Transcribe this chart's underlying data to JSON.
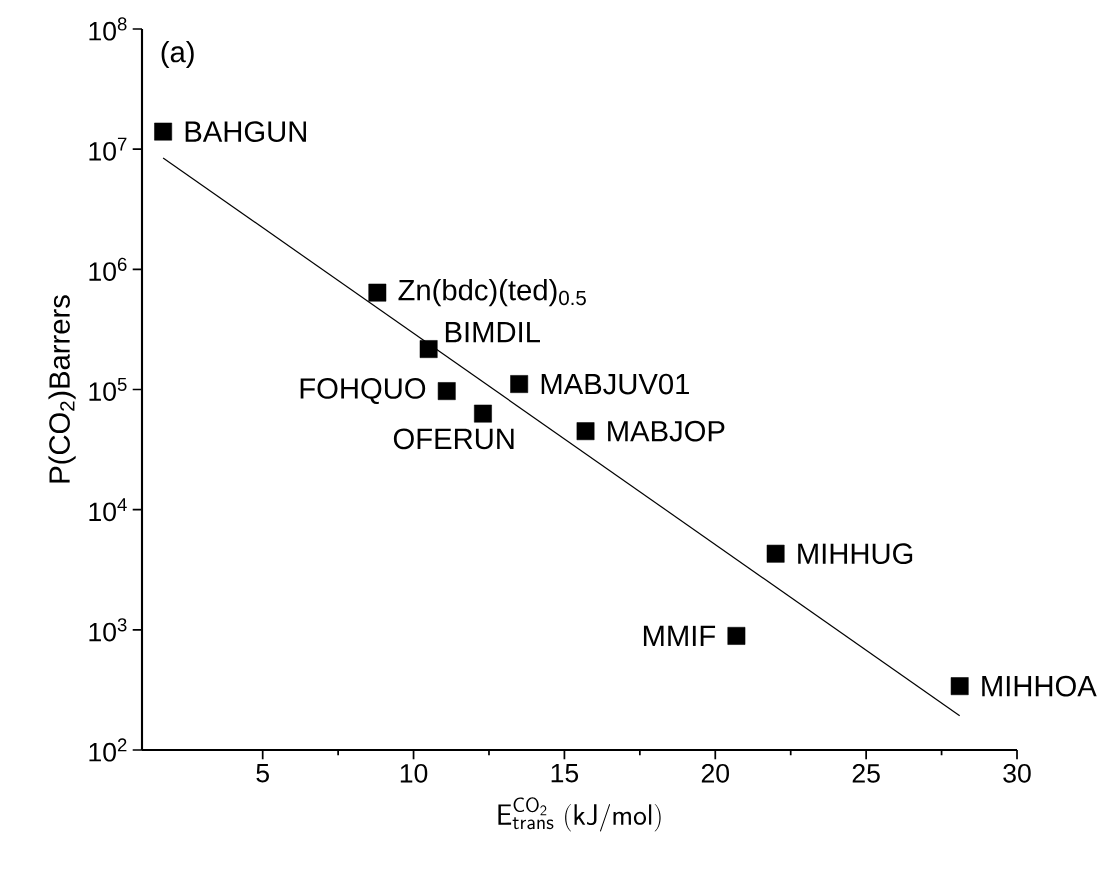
{
  "chart_data": {
    "type": "scatter",
    "xlabel": "\\mathsf{E}^{\\mathsf{CO_2}}_{\\mathsf{trans}}\\ \\mathsf{(kJ/mol)}",
    "ylabel": "P(CO$_{2}$)Barrers",
    "log": "y",
    "xlim": [
      1,
      30
    ],
    "xticks": [
      5,
      10,
      15,
      20,
      25,
      30
    ],
    "ylim": [
      100,
      100000000
    ],
    "yticks": [
      {
        "value": 100,
        "label": "10$^{2}$"
      },
      {
        "value": 1000,
        "label": "10$^{3}$"
      },
      {
        "value": 10000,
        "label": "10$^{4}$"
      },
      {
        "value": 100000,
        "label": "10$^{5}$"
      },
      {
        "value": 1000000,
        "label": "10$^{6}$"
      },
      {
        "value": 10000000,
        "label": "10$^{7}$"
      },
      {
        "value": 100000000,
        "label": "10$^{8}$"
      }
    ],
    "grid": false,
    "series": [
      {
        "marker": "square",
        "color": "#000000",
        "x": [
          1.7,
          8.8,
          10.5,
          11.1,
          12.3,
          13.5,
          15.7,
          22.0,
          20.7,
          28.1
        ],
        "values": [
          14000000,
          640000,
          217000,
          97000,
          63000,
          111000,
          45000,
          4300,
          890,
          340
        ]
      },
      {
        "type": "line",
        "marker": "none",
        "line_style": "solid",
        "color": "#000000",
        "x": [
          1.7,
          28.1
        ],
        "values": [
          8450000,
          193
        ]
      }
    ],
    "annotations": [
      "(a)",
      {
        "text": "BAHGUN",
        "x": 1.7,
        "y": 14000000
      },
      {
        "text": "Zn(bdc)(ted)$_{0.5}$",
        "x": 8.8,
        "y": 640000
      },
      {
        "text": "BIMDIL",
        "x": 10.5,
        "y": 217000
      },
      {
        "text": "FOHQUO",
        "x": 11.1,
        "y": 97000
      },
      {
        "text": "OFERUN",
        "x": 12.3,
        "y": 63000
      },
      {
        "text": "MABJUV01",
        "x": 13.5,
        "y": 111000
      },
      {
        "text": "MABJOP",
        "x": 15.7,
        "y": 45000
      },
      {
        "text": "MIHHUG",
        "x": 22.0,
        "y": 4300
      },
      {
        "text": "MMIF",
        "x": 20.7,
        "y": 890
      },
      {
        "text": "MIHHOA",
        "x": 28.1,
        "y": 340
      }
    ]
  }
}
